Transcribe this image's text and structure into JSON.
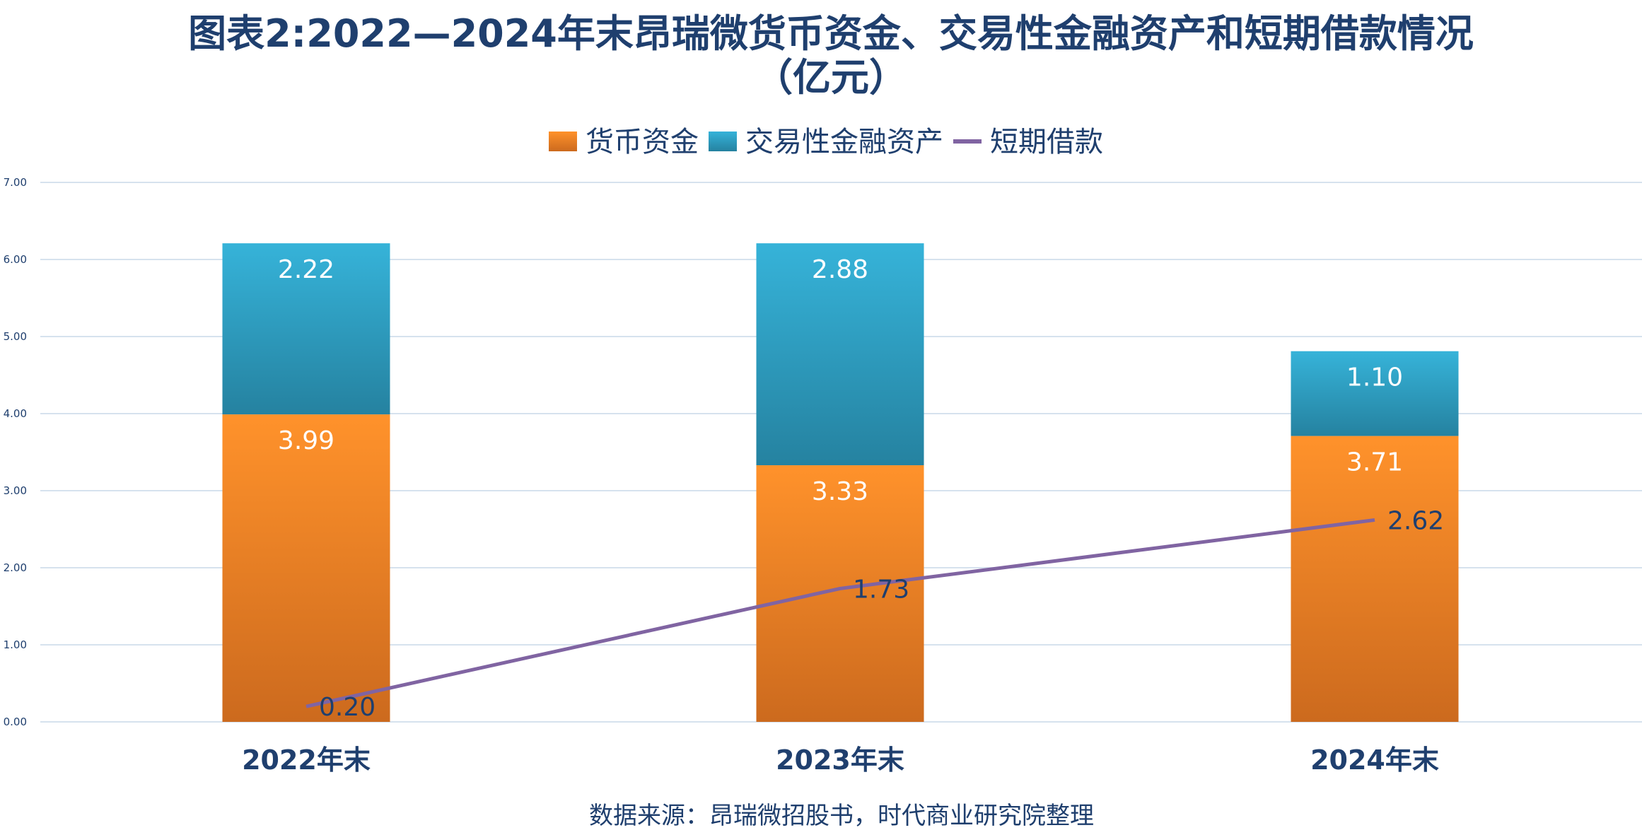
{
  "chart_data": {
    "type": "bar",
    "stacked": true,
    "title": "图表2:2022—2024年末昂瑞微货币资金、交易性金融资产和短期借款情况",
    "subtitle": "（亿元）",
    "categories": [
      "2022年末",
      "2023年末",
      "2024年末"
    ],
    "series": [
      {
        "name": "货币资金",
        "kind": "bar",
        "values": [
          3.99,
          3.33,
          3.71
        ],
        "color": "#f28e2b",
        "labels": [
          "3.99",
          "3.33",
          "3.71"
        ]
      },
      {
        "name": "交易性金融资产",
        "kind": "bar",
        "values": [
          2.22,
          2.88,
          1.1
        ],
        "color": "#2ea3c6",
        "labels": [
          "2.22",
          "2.88",
          "1.10"
        ]
      },
      {
        "name": "短期借款",
        "kind": "line",
        "values": [
          0.2,
          1.73,
          2.62
        ],
        "color": "#8064a2",
        "labels": [
          "0.20",
          "1.73",
          "2.62"
        ]
      }
    ],
    "ylim": [
      0,
      7
    ],
    "yticks": [
      "0.00",
      "1.00",
      "2.00",
      "3.00",
      "4.00",
      "5.00",
      "6.00",
      "7.00"
    ],
    "grid": true,
    "legend": "top-center",
    "source": "数据来源：昂瑞微招股书，时代商业研究院整理"
  }
}
